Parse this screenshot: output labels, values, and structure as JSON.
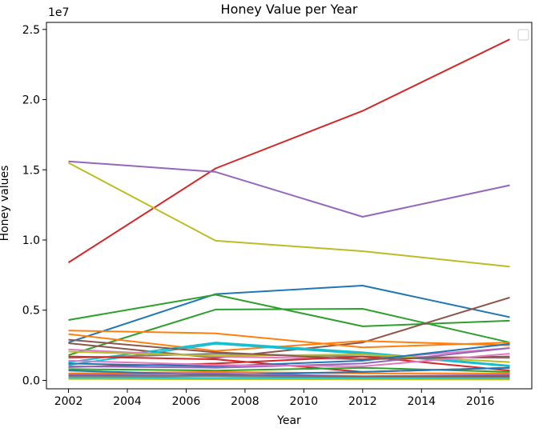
{
  "chart_data": {
    "type": "line",
    "title": "Honey Value per Year",
    "xlabel": "Year",
    "ylabel": "Honey values",
    "y_multiplier_label": "1e7",
    "x": [
      2002,
      2007,
      2012,
      2017
    ],
    "xlim": [
      2001.25,
      2017.75
    ],
    "ylim": [
      -600000,
      25500000
    ],
    "xticks": [
      2002,
      2004,
      2006,
      2008,
      2010,
      2012,
      2014,
      2016
    ],
    "xtick_labels": [
      "2002",
      "2004",
      "2006",
      "2008",
      "2010",
      "2012",
      "2014",
      "2016"
    ],
    "yticks": [
      0,
      5000000,
      10000000,
      15000000,
      20000000,
      25000000
    ],
    "ytick_labels": [
      "0.0",
      "0.5",
      "1.0",
      "1.5",
      "2.0",
      "2.5"
    ],
    "legend": "top-right",
    "grid": false,
    "series": [
      {
        "color": "#d62728",
        "values": [
          8400000,
          15100000,
          19200000,
          24300000
        ]
      },
      {
        "color": "#9467bd",
        "values": [
          15600000,
          14850000,
          11650000,
          13900000
        ]
      },
      {
        "color": "#bcbd22",
        "values": [
          15500000,
          9950000,
          9200000,
          8100000
        ]
      },
      {
        "color": "#1f77b4",
        "values": [
          2700000,
          6150000,
          6750000,
          4500000
        ]
      },
      {
        "color": "#2ca02c",
        "values": [
          4300000,
          6100000,
          3850000,
          4250000
        ]
      },
      {
        "color": "#2ca02c",
        "values": [
          1800000,
          5050000,
          5100000,
          2700000
        ]
      },
      {
        "color": "#8c564b",
        "values": [
          2650000,
          1600000,
          2700000,
          5900000
        ]
      },
      {
        "color": "#ff7f0e",
        "values": [
          3550000,
          3350000,
          2350000,
          2700000
        ]
      },
      {
        "color": "#ff7f0e",
        "values": [
          3300000,
          2100000,
          2800000,
          2500000
        ]
      },
      {
        "color": "#17becf",
        "values": [
          1300000,
          2700000,
          2000000,
          1050000
        ]
      },
      {
        "color": "#17becf",
        "values": [
          1100000,
          2600000,
          1900000,
          1000000
        ]
      },
      {
        "color": "#e377c2",
        "values": [
          2200000,
          1700000,
          1500000,
          2300000
        ]
      },
      {
        "color": "#7f7f7f",
        "values": [
          1600000,
          1900000,
          1700000,
          1600000
        ]
      },
      {
        "color": "#bcbd22",
        "values": [
          2050000,
          1750000,
          1850000,
          1300000
        ]
      },
      {
        "color": "#d62728",
        "values": [
          950000,
          1200000,
          1700000,
          700000
        ]
      },
      {
        "color": "#d62728",
        "values": [
          1700000,
          1500000,
          600000,
          900000
        ]
      },
      {
        "color": "#1f77b4",
        "values": [
          1200000,
          1000000,
          1400000,
          2600000
        ]
      },
      {
        "color": "#9467bd",
        "values": [
          1000000,
          900000,
          1200000,
          2300000
        ]
      },
      {
        "color": "#8c564b",
        "values": [
          2900000,
          2000000,
          1500000,
          1700000
        ]
      },
      {
        "color": "#e377c2",
        "values": [
          1400000,
          1100000,
          1000000,
          1900000
        ]
      },
      {
        "color": "#2ca02c",
        "values": [
          800000,
          700000,
          900000,
          600000
        ]
      },
      {
        "color": "#ff7f0e",
        "values": [
          500000,
          600000,
          500000,
          500000
        ]
      },
      {
        "color": "#1f77b4",
        "values": [
          700000,
          400000,
          600000,
          900000
        ]
      },
      {
        "color": "#9467bd",
        "values": [
          400000,
          500000,
          300000,
          400000
        ]
      },
      {
        "color": "#8c564b",
        "values": [
          300000,
          350000,
          250000,
          300000
        ]
      },
      {
        "color": "#7f7f7f",
        "values": [
          250000,
          300000,
          200000,
          200000
        ]
      },
      {
        "color": "#17becf",
        "values": [
          200000,
          150000,
          150000,
          120000
        ]
      },
      {
        "color": "#bcbd22",
        "values": [
          100000,
          80000,
          70000,
          60000
        ]
      }
    ]
  }
}
